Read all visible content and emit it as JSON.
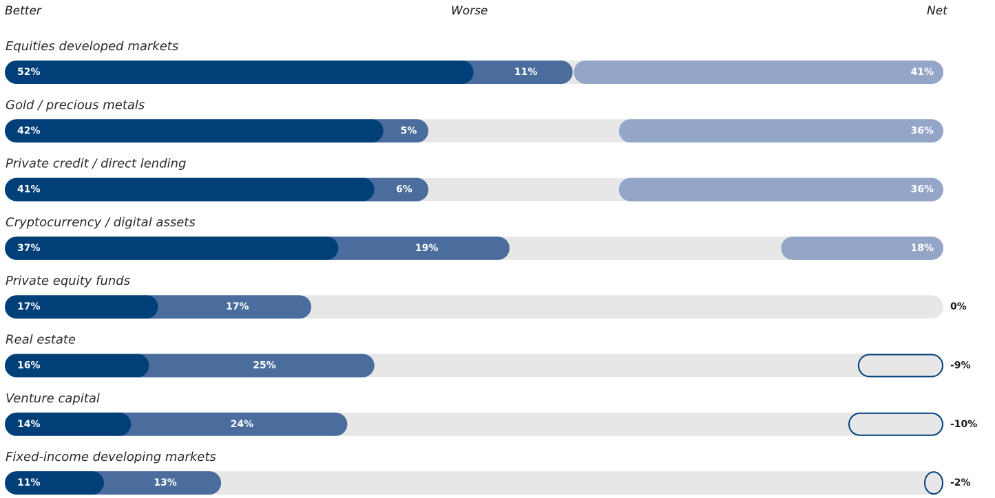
{
  "chart_data": {
    "type": "bar",
    "legend": [
      "Better",
      "Worse",
      "Net"
    ],
    "categories": [
      "Equities developed markets",
      "Gold / precious metals",
      "Private credit / direct lending",
      "Cryptocurrency / digital assets",
      "Private equity funds",
      "Real estate",
      "Venture capital",
      "Fixed-income developing markets"
    ],
    "series": [
      {
        "name": "Better",
        "values": [
          52,
          42,
          41,
          37,
          17,
          16,
          14,
          11
        ],
        "labels": [
          "52%",
          "42%",
          "41%",
          "37%",
          "17%",
          "16%",
          "14%",
          "11%"
        ]
      },
      {
        "name": "Worse",
        "values": [
          11,
          5,
          6,
          19,
          17,
          25,
          24,
          13
        ],
        "labels": [
          "11%",
          "5%",
          "6%",
          "19%",
          "17%",
          "25%",
          "24%",
          "13%"
        ]
      },
      {
        "name": "Net",
        "values": [
          41,
          36,
          36,
          18,
          0,
          -9,
          -10,
          -2
        ],
        "labels": [
          "41%",
          "36%",
          "36%",
          "18%",
          "0%",
          "-9%",
          "-10%",
          "-2%"
        ]
      }
    ],
    "colors": {
      "better": "#003f78",
      "worse": "#4a6d9e",
      "net_positive": "#94a6c8",
      "track": "#e7e7e7",
      "net_negative_outline": "#003f78"
    }
  }
}
